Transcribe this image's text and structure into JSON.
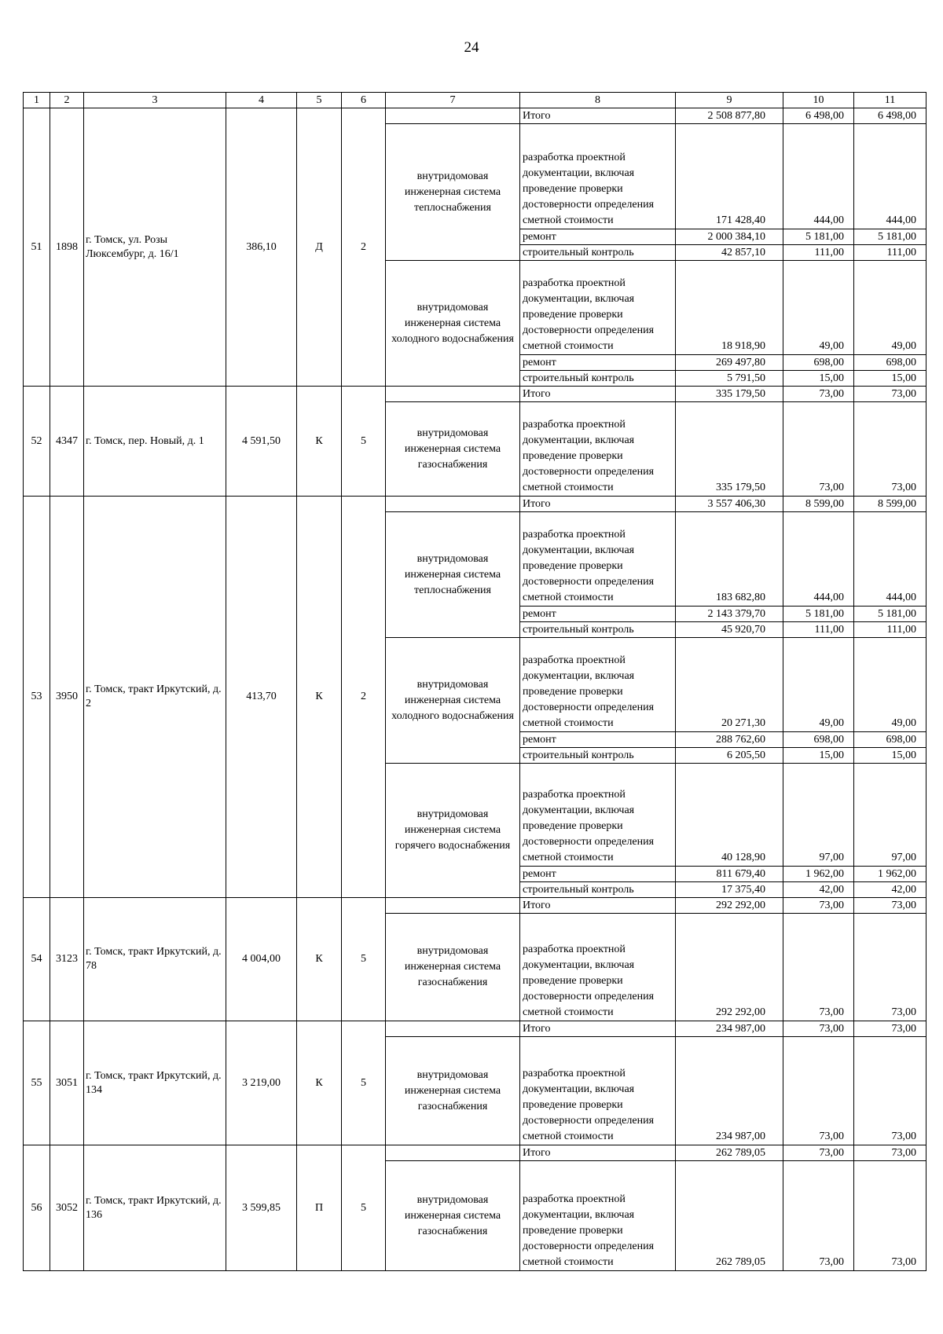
{
  "page_number": "24",
  "columns": [
    "1",
    "2",
    "3",
    "4",
    "5",
    "6",
    "7",
    "8",
    "9",
    "10",
    "11"
  ],
  "labels": {
    "itogo": "Итого",
    "design": "разработка проектной документации, включая проведение проверки достоверности определения сметной стоимости",
    "repair": "ремонт",
    "control": "строительный контроль"
  },
  "groups": [
    {
      "n": "51",
      "code": "1898",
      "address": "г. Томск, ул. Розы Люксембург, д. 16/1",
      "area": "386,10",
      "type": "Д",
      "floors": "2",
      "itogo": [
        "2 508 877,80",
        "6 498,00",
        "6 498,00"
      ],
      "systems": [
        {
          "name": "внутридомовая инженерная система теплоснабжения",
          "works": [
            {
              "kind": "design",
              "v": [
                "171 428,40",
                "444,00",
                "444,00"
              ]
            },
            {
              "kind": "repair",
              "v": [
                "2 000 384,10",
                "5 181,00",
                "5 181,00"
              ]
            },
            {
              "kind": "control",
              "v": [
                "42 857,10",
                "111,00",
                "111,00"
              ]
            }
          ]
        },
        {
          "name": "внутридомовая инженерная система холодного водоснабжения",
          "works": [
            {
              "kind": "design",
              "v": [
                "18 918,90",
                "49,00",
                "49,00"
              ]
            },
            {
              "kind": "repair",
              "v": [
                "269 497,80",
                "698,00",
                "698,00"
              ]
            },
            {
              "kind": "control",
              "v": [
                "5 791,50",
                "15,00",
                "15,00"
              ]
            }
          ]
        }
      ]
    },
    {
      "n": "52",
      "code": "4347",
      "address": "г. Томск, пер. Новый, д. 1",
      "area": "4 591,50",
      "type": "К",
      "floors": "5",
      "itogo": [
        "335 179,50",
        "73,00",
        "73,00"
      ],
      "systems": [
        {
          "name": "внутридомовая инженерная система газоснабжения",
          "works": [
            {
              "kind": "design",
              "v": [
                "335 179,50",
                "73,00",
                "73,00"
              ]
            }
          ]
        }
      ]
    },
    {
      "n": "53",
      "code": "3950",
      "address": "г. Томск, тракт Иркутский, д. 2",
      "area": "413,70",
      "type": "К",
      "floors": "2",
      "itogo": [
        "3 557 406,30",
        "8 599,00",
        "8 599,00"
      ],
      "systems": [
        {
          "name": "внутридомовая инженерная система теплоснабжения",
          "works": [
            {
              "kind": "design",
              "v": [
                "183 682,80",
                "444,00",
                "444,00"
              ]
            },
            {
              "kind": "repair",
              "v": [
                "2 143 379,70",
                "5 181,00",
                "5 181,00"
              ]
            },
            {
              "kind": "control",
              "v": [
                "45 920,70",
                "111,00",
                "111,00"
              ]
            }
          ]
        },
        {
          "name": "внутридомовая инженерная система холодного водоснабжения",
          "works": [
            {
              "kind": "design",
              "v": [
                "20 271,30",
                "49,00",
                "49,00"
              ]
            },
            {
              "kind": "repair",
              "v": [
                "288 762,60",
                "698,00",
                "698,00"
              ]
            },
            {
              "kind": "control",
              "v": [
                "6 205,50",
                "15,00",
                "15,00"
              ]
            }
          ]
        },
        {
          "name": "внутридомовая инженерная система горячего водоснабжения",
          "works": [
            {
              "kind": "design",
              "v": [
                "40 128,90",
                "97,00",
                "97,00"
              ]
            },
            {
              "kind": "repair",
              "v": [
                "811 679,40",
                "1 962,00",
                "1 962,00"
              ]
            },
            {
              "kind": "control",
              "v": [
                "17 375,40",
                "42,00",
                "42,00"
              ]
            }
          ]
        }
      ]
    },
    {
      "n": "54",
      "code": "3123",
      "address": "г. Томск, тракт Иркутский, д. 78",
      "area": "4 004,00",
      "type": "К",
      "floors": "5",
      "itogo": [
        "292 292,00",
        "73,00",
        "73,00"
      ],
      "systems": [
        {
          "name": "внутридомовая инженерная система газоснабжения",
          "works": [
            {
              "kind": "design",
              "v": [
                "292 292,00",
                "73,00",
                "73,00"
              ]
            }
          ]
        }
      ]
    },
    {
      "n": "55",
      "code": "3051",
      "address": "г. Томск, тракт Иркутский, д. 134",
      "area": "3 219,00",
      "type": "К",
      "floors": "5",
      "itogo": [
        "234 987,00",
        "73,00",
        "73,00"
      ],
      "systems": [
        {
          "name": "внутридомовая инженерная система газоснабжения",
          "works": [
            {
              "kind": "design",
              "v": [
                "234 987,00",
                "73,00",
                "73,00"
              ]
            }
          ]
        }
      ]
    },
    {
      "n": "56",
      "code": "3052",
      "address": "г. Томск, тракт Иркутский, д. 136",
      "area": "3 599,85",
      "type": "П",
      "floors": "5",
      "itogo": [
        "262 789,05",
        "73,00",
        "73,00"
      ],
      "systems": [
        {
          "name": "внутридомовая инженерная система газоснабжения",
          "works": [
            {
              "kind": "design",
              "v": [
                "262 789,05",
                "73,00",
                "73,00"
              ]
            }
          ]
        }
      ]
    }
  ]
}
